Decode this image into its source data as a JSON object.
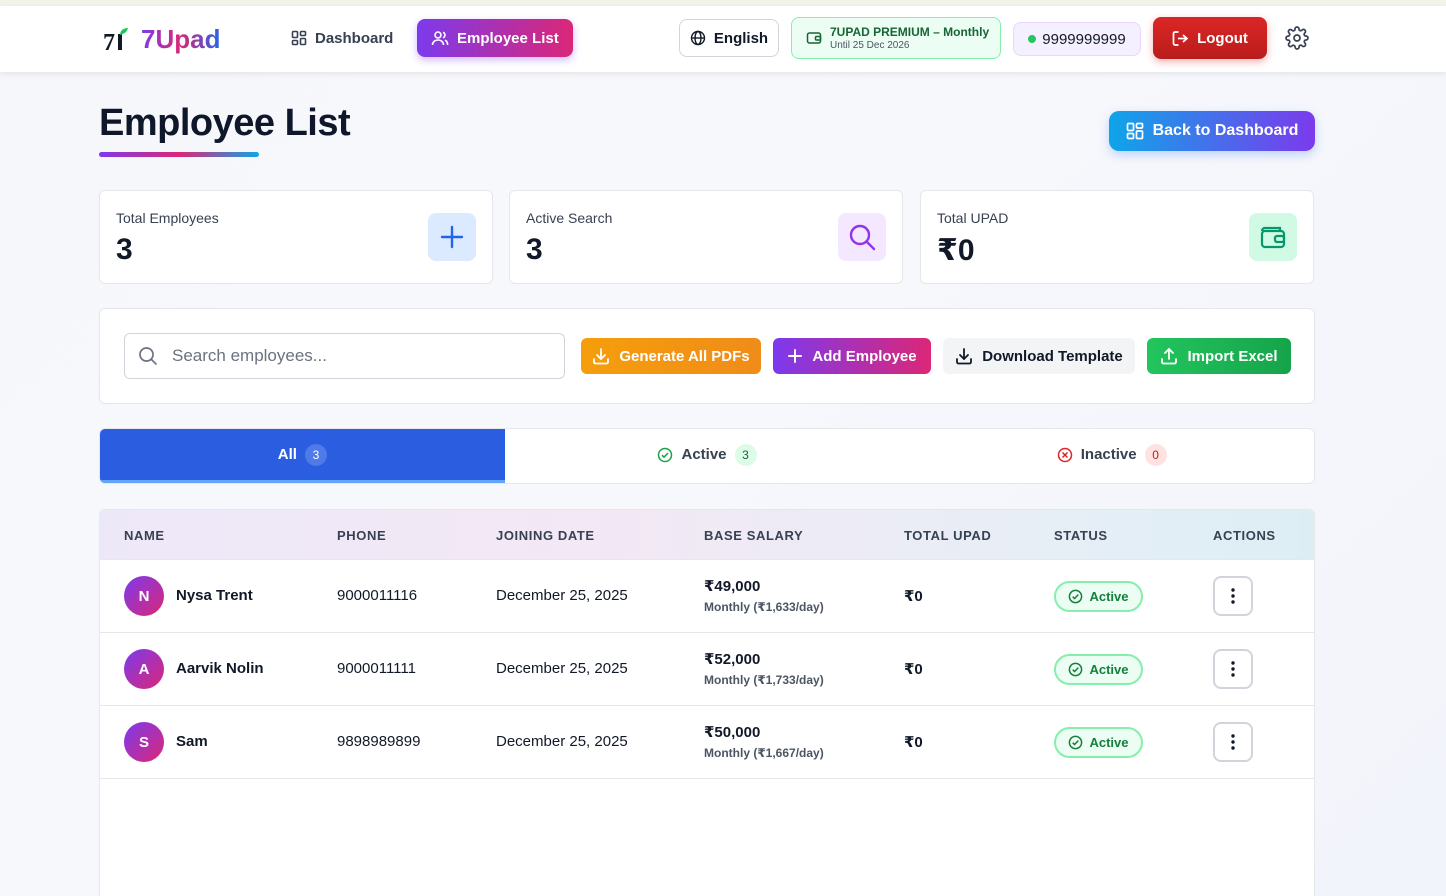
{
  "app": {
    "logo_text": "7Upad",
    "nav": {
      "dashboard": "Dashboard",
      "employee_list": "Employee List"
    },
    "language": "English",
    "premium": {
      "title": "7UPAD PREMIUM – Monthly",
      "until": "Until 25 Dec 2026"
    },
    "phone": "9999999999",
    "logout": "Logout"
  },
  "page": {
    "title": "Employee List",
    "back_button": "Back to Dashboard"
  },
  "stats": [
    {
      "label": "Total Employees",
      "value": "3",
      "icon": "plus-icon"
    },
    {
      "label": "Active Search",
      "value": "3",
      "icon": "search-icon"
    },
    {
      "label": "Total UPAD",
      "value": "₹0",
      "icon": "wallet-icon"
    }
  ],
  "toolbar": {
    "search_placeholder": "Search employees...",
    "generate_pdfs": "Generate All PDFs",
    "add_employee": "Add Employee",
    "download_template": "Download Template",
    "import_excel": "Import Excel"
  },
  "tabs": [
    {
      "label": "All",
      "count": "3"
    },
    {
      "label": "Active",
      "count": "3"
    },
    {
      "label": "Inactive",
      "count": "0"
    }
  ],
  "table": {
    "headers": [
      "NAME",
      "PHONE",
      "JOINING DATE",
      "BASE SALARY",
      "TOTAL UPAD",
      "STATUS",
      "ACTIONS"
    ],
    "rows": [
      {
        "initial": "N",
        "name": "Nysa Trent",
        "phone": "9000011116",
        "joining_date": "December 25, 2025",
        "salary": "₹49,000",
        "salary_sub": "Monthly (₹1,633/day)",
        "upad": "₹0",
        "status": "Active"
      },
      {
        "initial": "A",
        "name": "Aarvik Nolin",
        "phone": "9000011111",
        "joining_date": "December 25, 2025",
        "salary": "₹52,000",
        "salary_sub": "Monthly (₹1,733/day)",
        "upad": "₹0",
        "status": "Active"
      },
      {
        "initial": "S",
        "name": "Sam",
        "phone": "9898989899",
        "joining_date": "December 25, 2025",
        "salary": "₹50,000",
        "salary_sub": "Monthly (₹1,667/day)",
        "upad": "₹0",
        "status": "Active"
      }
    ]
  },
  "colors": {
    "primary_tab": "#2b5de0",
    "brand_purple": "#7c3aed",
    "brand_pink": "#db2777",
    "success": "#22c55e",
    "warning": "#f59e0b",
    "danger": "#dc2626"
  }
}
